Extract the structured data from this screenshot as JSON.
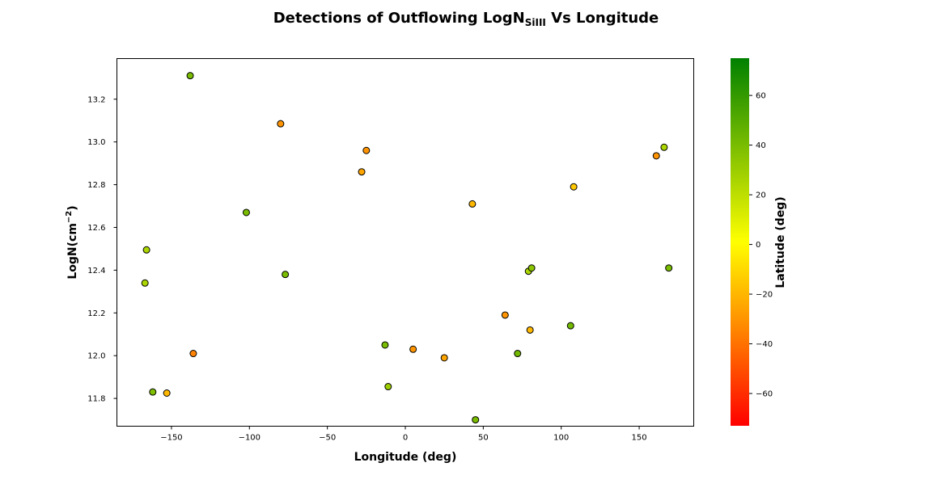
{
  "chart_data": {
    "type": "scatter",
    "title": {
      "prefix": "Detections of Outflowing LogN",
      "subscript": "SiIII",
      "suffix": " Vs Longitude"
    },
    "xlabel": "Longitude (deg)",
    "ylabel": {
      "main": "LogN(cm",
      "sup": "−2",
      "close": ")"
    },
    "xlim": [
      -185,
      185
    ],
    "ylim": [
      11.67,
      13.39
    ],
    "xticks": [
      -150,
      -100,
      -50,
      0,
      50,
      100,
      150
    ],
    "xtick_labels": [
      "−150",
      "−100",
      "−50",
      "0",
      "50",
      "100",
      "150"
    ],
    "yticks": [
      11.8,
      12.0,
      12.2,
      12.4,
      12.6,
      12.8,
      13.0,
      13.2
    ],
    "ytick_labels": [
      "11.8",
      "12.0",
      "12.2",
      "12.4",
      "12.6",
      "12.8",
      "13.0",
      "13.2"
    ],
    "grid": false,
    "colorbar": {
      "label": "Latitude (deg)",
      "range": [
        -73,
        75
      ],
      "ticks": [
        -60,
        -40,
        -20,
        0,
        20,
        40,
        60
      ],
      "tick_labels": [
        "−60",
        "−40",
        "−20",
        "0",
        "20",
        "40",
        "60"
      ],
      "colors": [
        "#ff0000",
        "#ffff00",
        "#008000"
      ]
    },
    "points": [
      {
        "x": -138,
        "y": 13.31,
        "c": 40
      },
      {
        "x": -80,
        "y": 13.085,
        "c": -30
      },
      {
        "x": -25,
        "y": 12.96,
        "c": -30
      },
      {
        "x": -28,
        "y": 12.86,
        "c": -25
      },
      {
        "x": -102,
        "y": 12.67,
        "c": 40
      },
      {
        "x": -166,
        "y": 12.495,
        "c": 25
      },
      {
        "x": -167,
        "y": 12.34,
        "c": 25
      },
      {
        "x": -77,
        "y": 12.38,
        "c": 40
      },
      {
        "x": -136,
        "y": 12.01,
        "c": -35
      },
      {
        "x": -162,
        "y": 11.83,
        "c": 38
      },
      {
        "x": -153,
        "y": 11.825,
        "c": -20
      },
      {
        "x": -13,
        "y": 12.05,
        "c": 40
      },
      {
        "x": -11,
        "y": 11.855,
        "c": 30
      },
      {
        "x": 5,
        "y": 12.03,
        "c": -30
      },
      {
        "x": 25,
        "y": 11.99,
        "c": -25
      },
      {
        "x": 43,
        "y": 12.71,
        "c": -20
      },
      {
        "x": 45,
        "y": 11.7,
        "c": 40
      },
      {
        "x": 64,
        "y": 12.19,
        "c": -30
      },
      {
        "x": 72,
        "y": 12.01,
        "c": 42
      },
      {
        "x": 79,
        "y": 12.395,
        "c": 25
      },
      {
        "x": 81,
        "y": 12.41,
        "c": 35
      },
      {
        "x": 80,
        "y": 12.12,
        "c": -20
      },
      {
        "x": 106,
        "y": 12.14,
        "c": 42
      },
      {
        "x": 108,
        "y": 12.79,
        "c": -15
      },
      {
        "x": 161,
        "y": 12.935,
        "c": -30
      },
      {
        "x": 166,
        "y": 12.975,
        "c": 25
      },
      {
        "x": 169,
        "y": 12.41,
        "c": 40
      }
    ]
  }
}
